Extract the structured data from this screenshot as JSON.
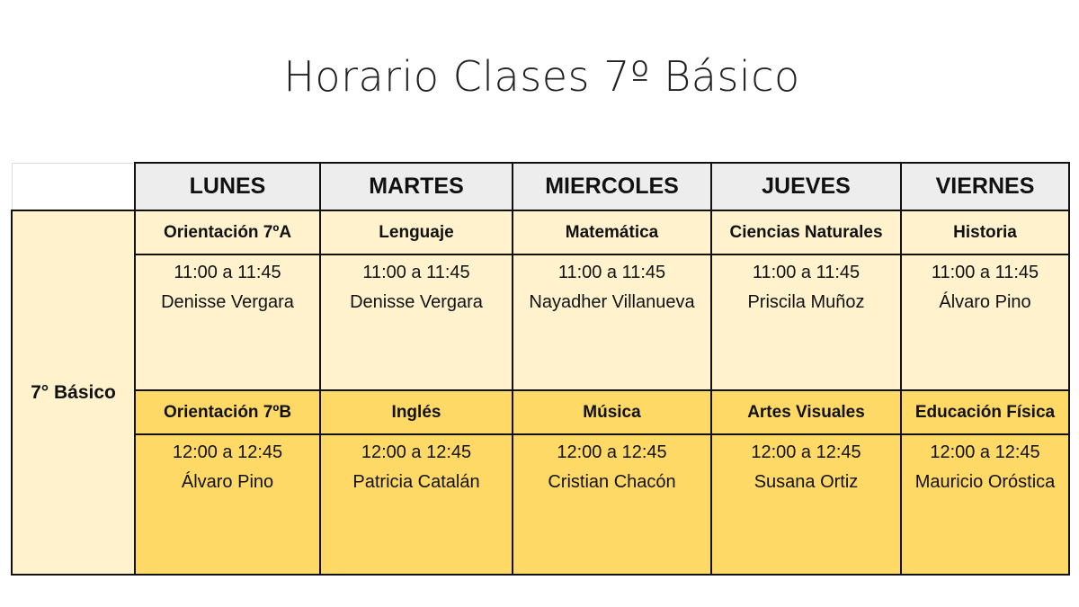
{
  "title": "Horario Clases 7º Básico",
  "colors": {
    "block1": "#FFF2CC",
    "block2": "#FFD966",
    "header": "#EDEDED"
  },
  "days": [
    "LUNES",
    "MARTES",
    "MIERCOLES",
    "JUEVES",
    "VIERNES"
  ],
  "row_label": "7° Básico",
  "block1": [
    {
      "subject": "Orientación 7ºA",
      "time": "11:00 a 11:45",
      "teacher": "Denisse Vergara"
    },
    {
      "subject": "Lenguaje",
      "time": "11:00 a 11:45",
      "teacher": "Denisse Vergara"
    },
    {
      "subject": "Matemática",
      "time": "11:00 a 11:45",
      "teacher": "Nayadher Villanueva"
    },
    {
      "subject": "Ciencias Naturales",
      "time": "11:00 a 11:45",
      "teacher": "Priscila Muñoz"
    },
    {
      "subject": "Historia",
      "time": "11:00 a 11:45",
      "teacher": "Álvaro Pino"
    }
  ],
  "block2": [
    {
      "subject": "Orientación 7ºB",
      "time": "12:00 a 12:45",
      "teacher": "Álvaro Pino"
    },
    {
      "subject": "Inglés",
      "time": "12:00 a 12:45",
      "teacher": "Patricia Catalán"
    },
    {
      "subject": "Música",
      "time": "12:00 a 12:45",
      "teacher": "Cristian Chacón"
    },
    {
      "subject": "Artes Visuales",
      "time": "12:00 a 12:45",
      "teacher": "Susana Ortiz"
    },
    {
      "subject": "Educación Física",
      "time": "12:00 a 12:45",
      "teacher": "Mauricio Oróstica"
    }
  ]
}
